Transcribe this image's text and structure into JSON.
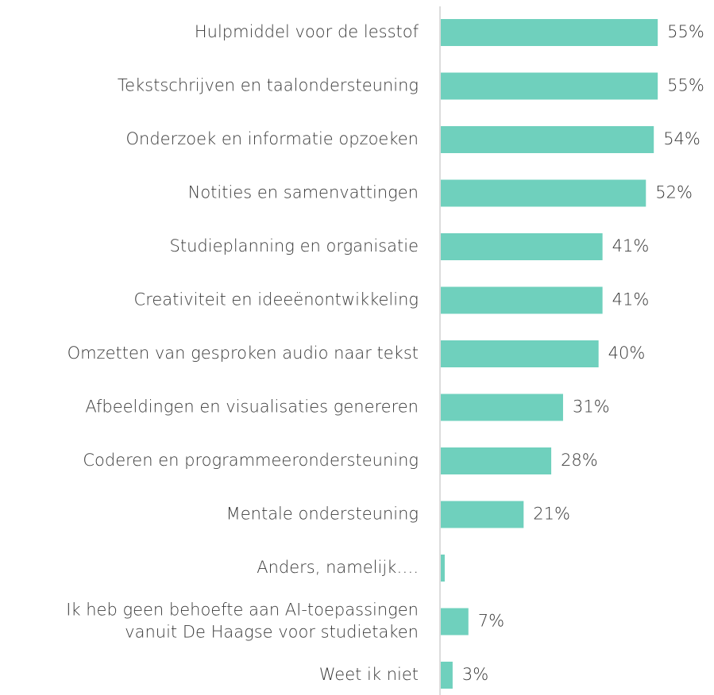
{
  "chart_data": {
    "type": "hbar",
    "categories": [
      "Hulpmiddel voor de lesstof",
      "Tekstschrijven en taalondersteuning",
      "Onderzoek en informatie opzoeken",
      "Notities en samenvattingen",
      "Studieplanning en organisatie",
      "Creativiteit en ideeënontwikkeling",
      "Omzetten van gesproken audio naar tekst",
      "Afbeeldingen en visualisaties genereren",
      "Coderen en programmeerondersteuning",
      "Mentale ondersteuning",
      "Anders, namelijk….",
      "Ik heb geen behoefte aan AI-toepassingen\nvanuit De Haagse voor studietaken",
      "Weet ik niet"
    ],
    "values": [
      55,
      55,
      54,
      52,
      41,
      41,
      40,
      31,
      28,
      21,
      1,
      7,
      3
    ],
    "value_labels": [
      "55%",
      "55%",
      "54%",
      "52%",
      "41%",
      "41%",
      "40%",
      "31%",
      "28%",
      "21%",
      null,
      "7%",
      "3%"
    ],
    "color": "#6fd0bd",
    "xlim": [
      0,
      60
    ]
  }
}
